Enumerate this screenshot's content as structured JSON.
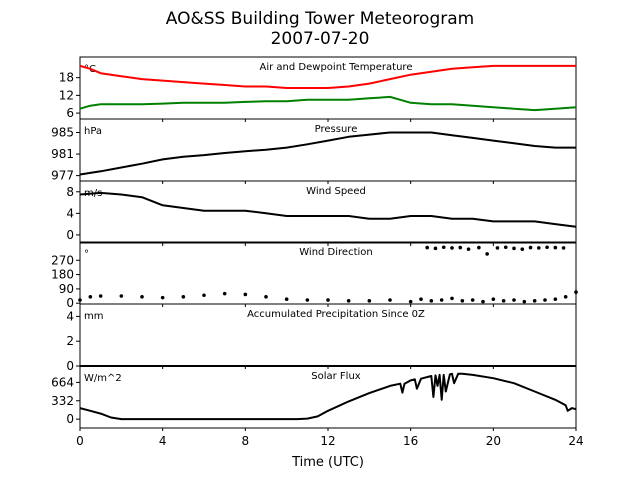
{
  "title": "AO&SS Building Tower Meteorogram",
  "subtitle": "2007-07-20",
  "xlabel": "Time (UTC)",
  "x_ticks": [
    0,
    4,
    8,
    12,
    16,
    20,
    24
  ],
  "xlim": [
    0,
    24
  ],
  "colors": {
    "temperature": "#ff0000",
    "dewpoint": "#008000",
    "default": "#000000"
  },
  "chart_data": [
    {
      "type": "line",
      "title": "Air and Dewpoint Temperature",
      "unit": "°C",
      "ylim": [
        4,
        25
      ],
      "y_ticks": [
        6,
        12,
        18
      ],
      "series": [
        {
          "key": "temperature",
          "color": "#ff0000",
          "x": [
            0,
            0.5,
            1,
            2,
            3,
            4,
            5,
            6,
            7,
            8,
            9,
            10,
            11,
            12,
            13,
            14,
            15,
            16,
            17,
            18,
            19,
            20,
            21,
            22,
            23,
            24
          ],
          "y": [
            22,
            21,
            19.5,
            18.5,
            17.5,
            17,
            16.5,
            16,
            15.5,
            15,
            15,
            14.5,
            14.5,
            14.5,
            15,
            16,
            17.5,
            19,
            20,
            21,
            21.5,
            22,
            22,
            22,
            22,
            22
          ]
        },
        {
          "key": "dewpoint",
          "color": "#008000",
          "x": [
            0,
            0.5,
            1,
            2,
            3,
            4,
            5,
            6,
            7,
            8,
            9,
            10,
            11,
            12,
            13,
            14,
            15,
            15.5,
            16,
            17,
            18,
            19,
            20,
            21,
            22,
            23,
            24
          ],
          "y": [
            7.5,
            8.5,
            9,
            9,
            9,
            9.2,
            9.5,
            9.5,
            9.5,
            9.8,
            10,
            10,
            10.5,
            10.5,
            10.5,
            11,
            11.5,
            10.5,
            9.5,
            9,
            9,
            8.5,
            8,
            7.5,
            7,
            7.5,
            8
          ]
        }
      ]
    },
    {
      "type": "line",
      "title": "Pressure",
      "unit": "hPa",
      "ylim": [
        976,
        987.5
      ],
      "y_ticks": [
        977,
        981,
        985
      ],
      "series": [
        {
          "key": "pressure",
          "color": "#000000",
          "x": [
            0,
            1,
            2,
            3,
            4,
            5,
            6,
            7,
            8,
            9,
            10,
            11,
            12,
            13,
            14,
            15,
            16,
            17,
            18,
            19,
            20,
            21,
            22,
            23,
            24
          ],
          "y": [
            977.2,
            977.8,
            978.5,
            979.2,
            980,
            980.5,
            980.8,
            981.2,
            981.5,
            981.8,
            982.2,
            982.8,
            983.5,
            984.2,
            984.6,
            985,
            985,
            985,
            984.5,
            984,
            983.5,
            983,
            982.5,
            982.2,
            982.2
          ]
        }
      ]
    },
    {
      "type": "line",
      "title": "Wind Speed",
      "unit": "m/s",
      "ylim": [
        -1.5,
        10
      ],
      "y_ticks": [
        0,
        4,
        8
      ],
      "series": [
        {
          "key": "wind_speed",
          "color": "#000000",
          "x": [
            0,
            1,
            2,
            3,
            4,
            5,
            6,
            7,
            8,
            9,
            10,
            11,
            12,
            13,
            14,
            15,
            16,
            17,
            18,
            19,
            20,
            21,
            22,
            23,
            24
          ],
          "y": [
            7.5,
            7.8,
            7.5,
            7,
            5.5,
            5,
            4.5,
            4.5,
            4.5,
            4,
            3.5,
            3.5,
            3.5,
            3.5,
            3,
            3,
            3.5,
            3.5,
            3,
            3,
            2.5,
            2.5,
            2.5,
            2,
            1.5
          ]
        }
      ]
    },
    {
      "type": "scatter",
      "title": "Wind Direction",
      "unit": "°",
      "ylim": [
        -5,
        385
      ],
      "y_ticks": [
        0,
        90,
        180,
        270
      ],
      "series": [
        {
          "key": "wind_direction",
          "color": "#000000",
          "x": [
            0,
            0.5,
            1,
            2,
            3,
            4,
            5,
            6,
            7,
            8,
            9,
            10,
            11,
            12,
            13,
            14,
            15,
            16,
            16.5,
            17,
            17.5,
            18,
            18.5,
            19,
            19.5,
            20,
            20.5,
            21,
            21.5,
            22,
            22.5,
            23,
            23.5,
            24
          ],
          "y": [
            20,
            40,
            45,
            45,
            40,
            35,
            40,
            50,
            60,
            55,
            40,
            25,
            20,
            20,
            15,
            15,
            20,
            10,
            25,
            15,
            20,
            30,
            15,
            20,
            10,
            25,
            15,
            20,
            10,
            15,
            20,
            25,
            40,
            70
          ]
        },
        {
          "key": "wind_direction_high",
          "color": "#000000",
          "x": [
            16.8,
            17.2,
            17.6,
            18,
            18.4,
            18.8,
            19.3,
            19.7,
            20.2,
            20.6,
            21,
            21.4,
            21.8,
            22.2,
            22.6,
            23,
            23.4
          ],
          "y": [
            350,
            345,
            352,
            348,
            350,
            340,
            350,
            310,
            348,
            352,
            345,
            340,
            350,
            348,
            352,
            350,
            348
          ]
        }
      ]
    },
    {
      "type": "line",
      "title": "Accumulated Precipitation Since 0Z",
      "unit": "mm",
      "ylim": [
        0,
        5
      ],
      "y_ticks": [
        0,
        2,
        4
      ],
      "series": [
        {
          "key": "precipitation",
          "color": "#000000",
          "x": [
            0,
            24
          ],
          "y": [
            0,
            0
          ]
        }
      ]
    },
    {
      "type": "line",
      "title": "Solar Flux",
      "unit": "W/m^2",
      "ylim": [
        -160,
        960
      ],
      "y_ticks": [
        0,
        332,
        664
      ],
      "series": [
        {
          "key": "solar_flux",
          "color": "#000000",
          "x": [
            0,
            0.5,
            1,
            1.5,
            2,
            3,
            4,
            5,
            6,
            7,
            8,
            9,
            10,
            10.5,
            11,
            11.5,
            12,
            13,
            14,
            15,
            15.5,
            15.6,
            15.7,
            16,
            16.2,
            16.3,
            16.5,
            17,
            17.1,
            17.2,
            17.3,
            17.4,
            17.5,
            17.6,
            17.7,
            17.9,
            18,
            18.1,
            18.3,
            18.5,
            19,
            20,
            21,
            22,
            23,
            23.5,
            23.6,
            23.8,
            24
          ],
          "y": [
            200,
            150,
            100,
            30,
            0,
            0,
            0,
            0,
            0,
            0,
            0,
            0,
            0,
            0,
            10,
            50,
            150,
            320,
            470,
            600,
            640,
            480,
            640,
            700,
            720,
            550,
            730,
            780,
            400,
            790,
            600,
            800,
            350,
            800,
            500,
            810,
            820,
            650,
            820,
            820,
            800,
            740,
            650,
            500,
            350,
            250,
            150,
            200,
            180
          ]
        }
      ]
    }
  ]
}
